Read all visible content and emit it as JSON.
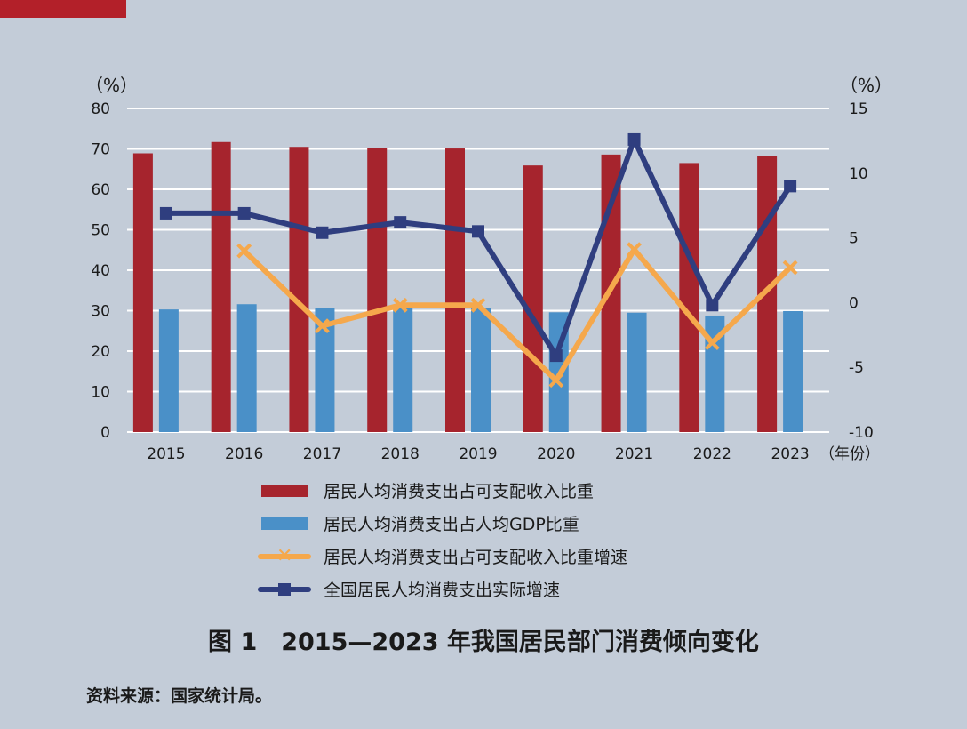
{
  "chart_data": {
    "type": "bar",
    "categories": [
      "2015",
      "2016",
      "2017",
      "2018",
      "2019",
      "2020",
      "2021",
      "2022",
      "2023"
    ],
    "x_unit": "（年份）",
    "y_left": {
      "unit": "（%）",
      "ylim": [
        0,
        80
      ],
      "ticks": [
        0,
        10,
        20,
        30,
        40,
        50,
        60,
        70,
        80
      ]
    },
    "y_right": {
      "unit": "（%）",
      "ylim": [
        -10,
        15
      ],
      "ticks": [
        -10,
        -5,
        0,
        5,
        10,
        15
      ]
    },
    "grid": true,
    "legend_position": "bottom",
    "series": [
      {
        "name": "居民人均消费支出占可支配收入比重",
        "type": "bar",
        "axis": "left",
        "color": "#a6242d",
        "values": [
          68.9,
          71.7,
          70.5,
          70.3,
          70.1,
          65.9,
          68.6,
          66.5,
          68.3
        ]
      },
      {
        "name": "居民人均消费支出占人均GDP比重",
        "type": "bar",
        "axis": "left",
        "color": "#4a90c8",
        "values": [
          30.3,
          31.6,
          30.7,
          30.7,
          30.6,
          29.6,
          29.5,
          28.8,
          29.9
        ]
      },
      {
        "name": "居民人均消费支出占可支配收入比重增速",
        "type": "line",
        "axis": "right",
        "color": "#f5a84c",
        "marker": "x",
        "values": [
          null,
          4.0,
          -1.8,
          -0.2,
          -0.2,
          -6.0,
          4.1,
          -3.1,
          2.7
        ]
      },
      {
        "name": "全国居民人均消费支出实际增速",
        "type": "line",
        "axis": "right",
        "color": "#2f3e7f",
        "marker": "square",
        "values": [
          6.9,
          6.9,
          5.4,
          6.2,
          5.5,
          -4.1,
          12.6,
          -0.2,
          9.0
        ]
      }
    ]
  },
  "caption": "图 1　2015—2023 年我国居民部门消费倾向变化",
  "source": "资料来源：国家统计局。"
}
